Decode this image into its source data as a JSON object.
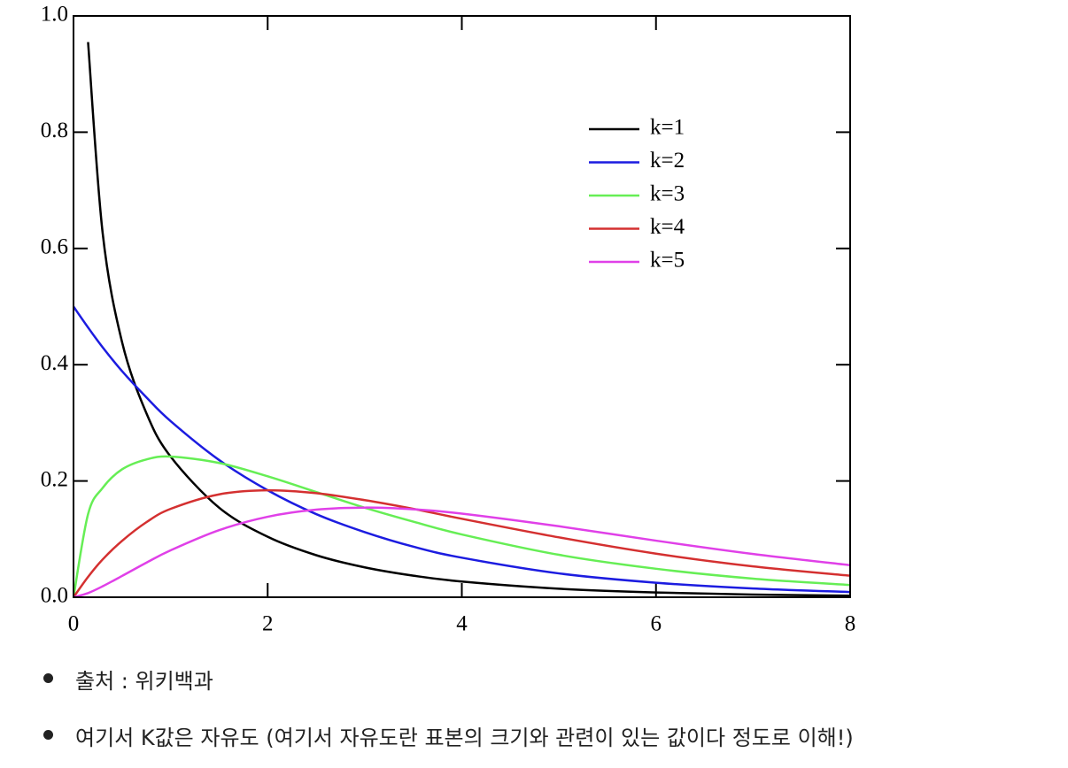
{
  "chart_data": {
    "type": "line",
    "x": [
      0,
      0.15,
      0.3,
      0.5,
      0.75,
      1,
      1.5,
      2,
      2.5,
      3,
      3.5,
      4,
      5,
      6,
      7,
      8
    ],
    "series": [
      {
        "name": "k=1",
        "color": "#000000",
        "values": [
          null,
          0.955,
          0.627,
          0.439,
          0.317,
          0.242,
          0.154,
          0.104,
          0.0723,
          0.0514,
          0.0371,
          0.027,
          0.0146,
          0.0081,
          0.0046,
          0.0026
        ]
      },
      {
        "name": "k=2",
        "color": "#1c1ce0",
        "values": [
          0.5,
          0.464,
          0.43,
          0.389,
          0.344,
          0.303,
          0.236,
          0.184,
          0.143,
          0.112,
          0.087,
          0.068,
          0.041,
          0.025,
          0.015,
          0.009
        ]
      },
      {
        "name": "k=3",
        "color": "#66ee55",
        "values": [
          0,
          0.143,
          0.188,
          0.22,
          0.237,
          0.242,
          0.231,
          0.208,
          0.181,
          0.154,
          0.13,
          0.108,
          0.073,
          0.049,
          0.032,
          0.021
        ]
      },
      {
        "name": "k=4",
        "color": "#d43030",
        "values": [
          0,
          0.035,
          0.065,
          0.097,
          0.129,
          0.152,
          0.177,
          0.184,
          0.179,
          0.167,
          0.152,
          0.135,
          0.103,
          0.075,
          0.053,
          0.037
        ]
      },
      {
        "name": "k=5",
        "color": "#e040e8",
        "values": [
          0,
          0.0072,
          0.0188,
          0.0366,
          0.0594,
          0.0807,
          0.1154,
          0.1384,
          0.1506,
          0.1542,
          0.1513,
          0.1439,
          0.1221,
          0.0973,
          0.0744,
          0.0551
        ]
      }
    ],
    "xlim": [
      0,
      8
    ],
    "xticks": [
      0,
      2,
      4,
      6,
      8
    ],
    "ylim": [
      0,
      1
    ],
    "yticks": [
      {
        "value": 0,
        "label": "0.0"
      },
      0.2,
      0.4,
      0.6,
      0.8,
      {
        "value": 1,
        "label": "1.0"
      }
    ],
    "legend": "upper right"
  },
  "bullets": [
    "출처 : 위키백과",
    "여기서 K값은 자유도 (여기서 자유도란 표본의 크기와 관련이 있는 값이다 정도로 이해!)"
  ]
}
